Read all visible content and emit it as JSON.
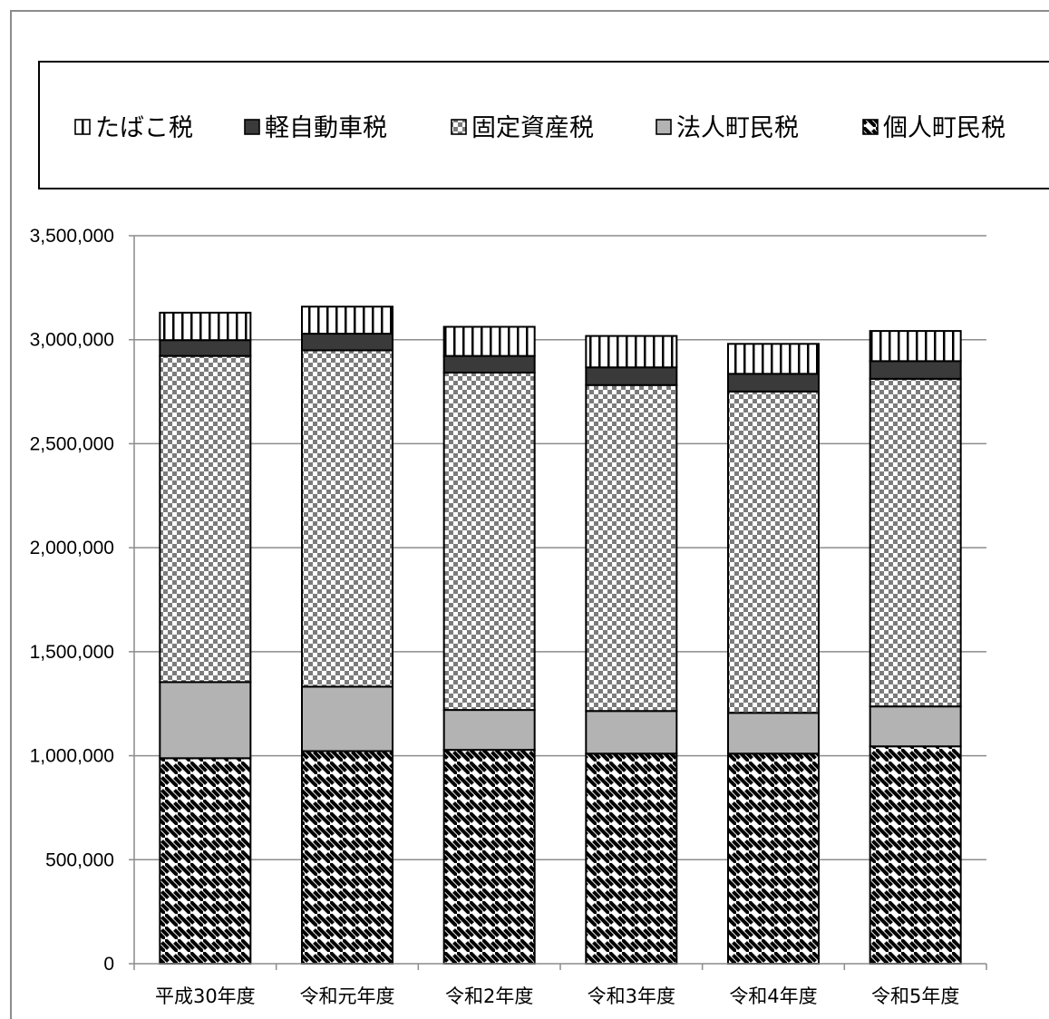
{
  "chart_data": {
    "type": "bar",
    "stacked": true,
    "categories": [
      "平成30年度",
      "令和元年度",
      "令和2年度",
      "令和3年度",
      "令和4年度",
      "令和5年度"
    ],
    "series": [
      {
        "name": "個人町民税",
        "pattern": "diagonal-hatch",
        "color": "#000000",
        "values": [
          988000,
          1022000,
          1028000,
          1010000,
          1010000,
          1045000
        ]
      },
      {
        "name": "法人町民税",
        "pattern": "solid",
        "color": "#b3b3b3",
        "values": [
          366000,
          310000,
          192000,
          205000,
          196000,
          192000
        ]
      },
      {
        "name": "固定資産税",
        "pattern": "checkerboard",
        "color": "#808080",
        "values": [
          1568000,
          1617000,
          1622000,
          1567000,
          1545000,
          1575000
        ]
      },
      {
        "name": "軽自動車税",
        "pattern": "solid",
        "color": "#3a3a3a",
        "values": [
          76000,
          80000,
          80000,
          85000,
          85000,
          85000
        ]
      },
      {
        "name": "たばこ税",
        "pattern": "vertical-lines",
        "color": "#000000",
        "values": [
          132000,
          130000,
          140000,
          151000,
          144000,
          145000
        ]
      }
    ],
    "legend_order": [
      "たばこ税",
      "軽自動車税",
      "固定資産税",
      "法人町民税",
      "個人町民税"
    ],
    "legend_position": "top",
    "yticks": [
      "0",
      "500,000",
      "1,000,000",
      "1,500,000",
      "2,000,000",
      "2,500,000",
      "3,000,000",
      "3,500,000"
    ],
    "ylim": [
      0,
      3500000
    ],
    "grid": true,
    "title": "",
    "xlabel": "",
    "ylabel": ""
  }
}
